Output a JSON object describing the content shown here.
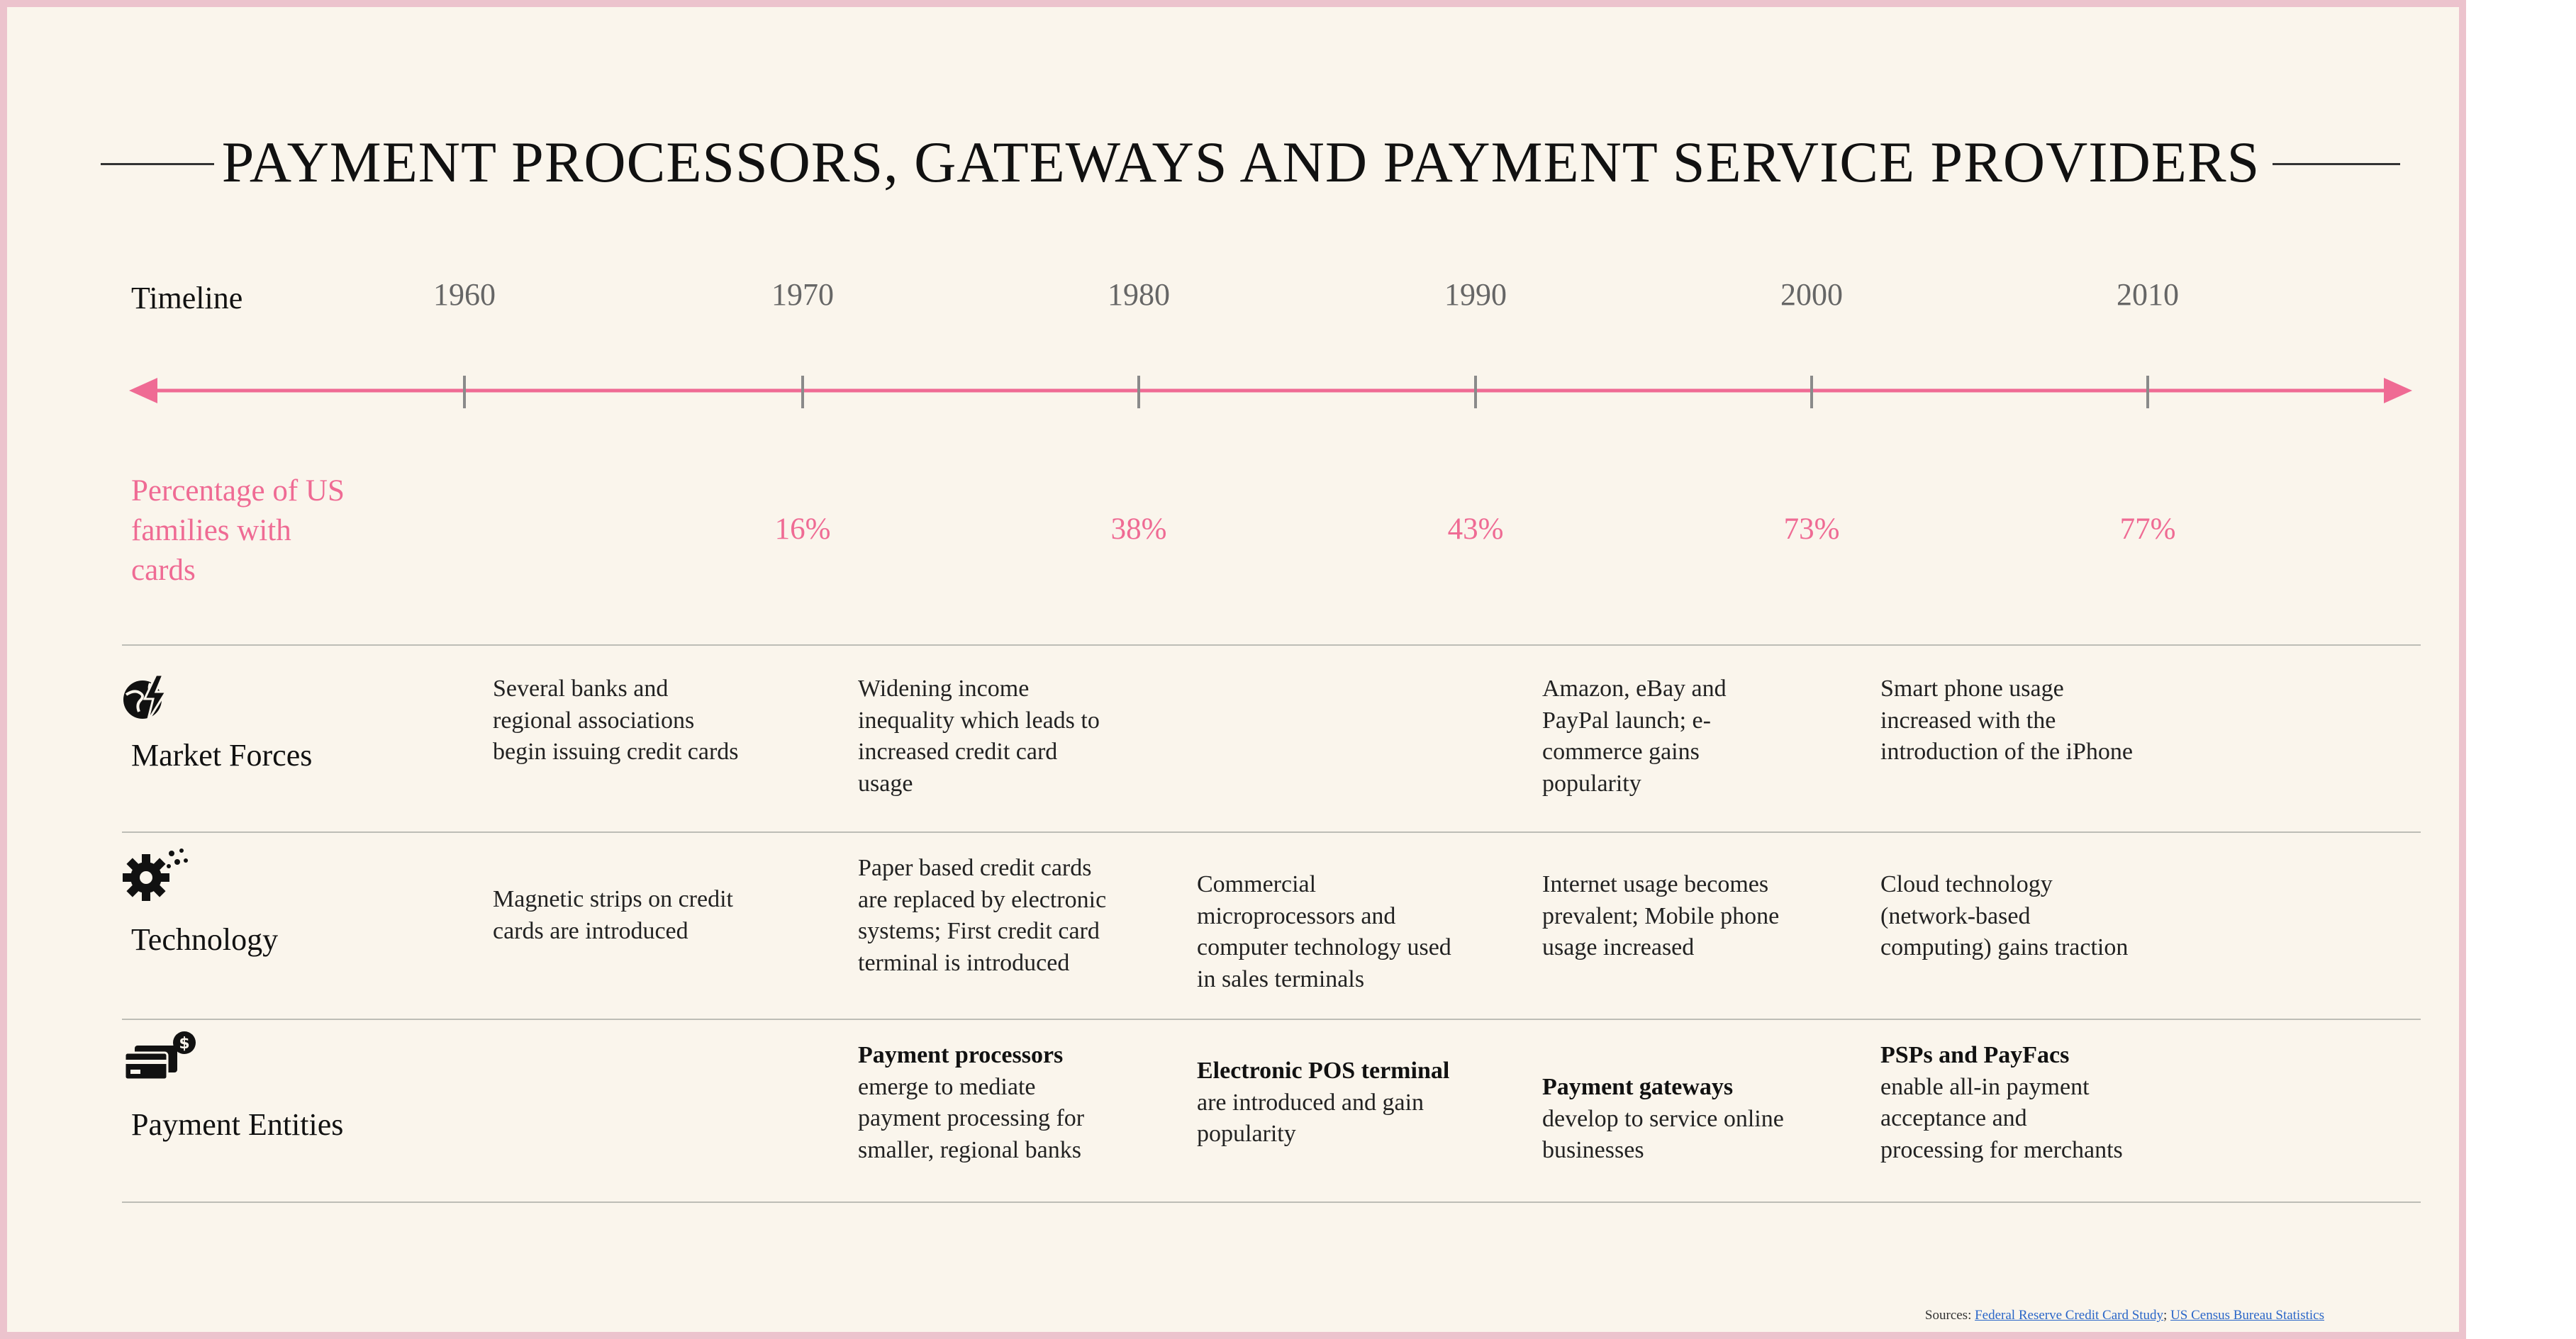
{
  "title": "PAYMENT PROCESSORS, GATEWAYS AND PAYMENT SERVICE PROVIDERS",
  "timeline_label": "Timeline",
  "years": [
    "1960",
    "1970",
    "1980",
    "1990",
    "2000",
    "2010"
  ],
  "percentage_label": "Percentage of US families with cards",
  "percentages": [
    "",
    "16%",
    "38%",
    "43%",
    "73%",
    "77%"
  ],
  "rows": [
    {
      "label": "Market Forces",
      "icon": "globe-lightning-icon",
      "cells": [
        [
          {
            "t": "Several banks and regional associations begin issuing credit cards"
          }
        ],
        [
          {
            "t": "Widening income inequality which leads to increased credit card usage"
          }
        ],
        [],
        [
          {
            "t": "Amazon, eBay and PayPal launch; e-commerce gains popularity"
          }
        ],
        [
          {
            "t": "Smart phone usage increased with the introduction of the iPhone"
          }
        ]
      ]
    },
    {
      "label": "Technology",
      "icon": "gear-sparkle-icon",
      "cells": [
        [
          {
            "t": "Magnetic strips on credit cards are introduced"
          }
        ],
        [
          {
            "t": "Paper based credit cards are replaced by electronic systems; First credit card terminal is introduced"
          }
        ],
        [
          {
            "t": "Commercial microprocessors and computer technology used in sales terminals"
          }
        ],
        [
          {
            "t": "Internet usage becomes prevalent; Mobile phone usage increased"
          }
        ],
        [
          {
            "t": "Cloud technology (network-based computing) gains traction"
          }
        ]
      ]
    },
    {
      "label": "Payment Entities",
      "icon": "credit-card-dollar-icon",
      "cells": [
        [],
        [
          {
            "t": "Payment processors",
            "b": true
          },
          {
            "t": " emerge to mediate payment processing for smaller, regional banks"
          }
        ],
        [
          {
            "t": "Electronic POS terminal",
            "b": true
          },
          {
            "t": " are introduced and gain popularity"
          }
        ],
        [
          {
            "t": "Payment gateways",
            "b": true
          },
          {
            "t": " develop to service online businesses"
          }
        ],
        [
          {
            "t": "PSPs and PayFacs",
            "b": true
          },
          {
            "t": " enable all-in payment acceptance and processing for merchants"
          }
        ]
      ]
    }
  ],
  "sources": {
    "prefix": "Sources: ",
    "links": [
      "Federal Reserve Credit Card Study",
      "US Census Bureau Statistics"
    ],
    "separator": "; "
  },
  "colors": {
    "accent": "#ef6b94",
    "background": "#faf5ec",
    "border": "#ecc3cd",
    "link": "#2a66c8"
  }
}
